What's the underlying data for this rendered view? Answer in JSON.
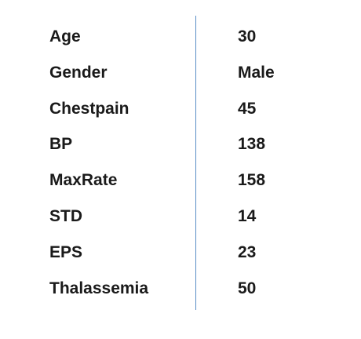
{
  "rows": [
    {
      "label": "Age",
      "value": "30"
    },
    {
      "label": "Gender",
      "value": "Male"
    },
    {
      "label": "Chestpain",
      "value": "45"
    },
    {
      "label": "BP",
      "value": "138"
    },
    {
      "label": "MaxRate",
      "value": "158"
    },
    {
      "label": "STD",
      "value": "14"
    },
    {
      "label": "EPS",
      "value": "23"
    },
    {
      "label": "Thalassemia",
      "value": "50"
    }
  ]
}
